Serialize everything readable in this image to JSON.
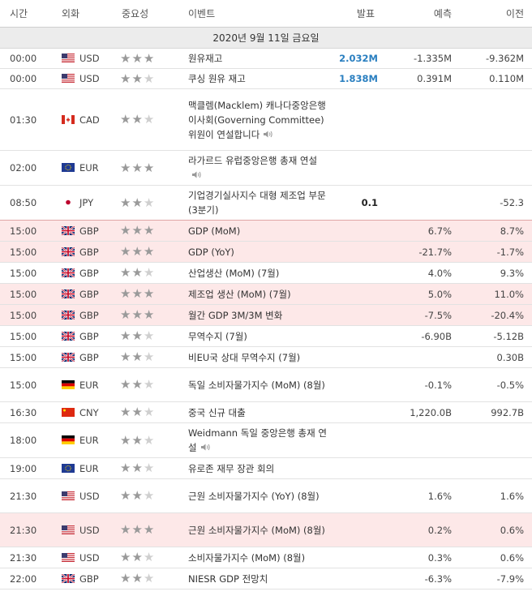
{
  "header": {
    "time": "시간",
    "currency": "외화",
    "importance": "중요성",
    "event": "이벤트",
    "actual": "발표",
    "forecast": "예측",
    "previous": "이전"
  },
  "date_label": "2020년 9월 11일 금요일",
  "colors": {
    "actual_blue": "#2a7fc0",
    "highlight_row": "#fde8e8",
    "star_on": "#9a9a9a",
    "star_off": "#cfcfcf"
  },
  "rows": [
    {
      "time": "00:00",
      "flag": "us-flag-icon",
      "currency": "USD",
      "stars": 3,
      "event": "원유재고",
      "speaker": false,
      "actual": "2.032M",
      "actual_style": "blue",
      "forecast": "-1.335M",
      "previous": "-9.362M",
      "hl": false
    },
    {
      "time": "00:00",
      "flag": "us-flag-icon",
      "currency": "USD",
      "stars": 2,
      "event": "쿠싱 원유 재고",
      "speaker": false,
      "actual": "1.838M",
      "actual_style": "blue",
      "forecast": "0.391M",
      "previous": "0.110M",
      "hl": false
    },
    {
      "time": "01:30",
      "flag": "ca-flag-icon",
      "currency": "CAD",
      "stars": 2,
      "event": "맥클렘(Macklem) 캐나다중앙은행 이사회(Governing Committee) 위원이 연설합니다",
      "speaker": true,
      "actual": "",
      "actual_style": "",
      "forecast": "",
      "previous": "",
      "hl": false
    },
    {
      "time": "02:00",
      "flag": "eu-flag-icon",
      "currency": "EUR",
      "stars": 3,
      "event": "라가르드 유럽중앙은행 총재 연설",
      "speaker": true,
      "actual": "",
      "actual_style": "",
      "forecast": "",
      "previous": "",
      "hl": false
    },
    {
      "time": "08:50",
      "flag": "jp-flag-icon",
      "currency": "JPY",
      "stars": 2,
      "event": "기업경기실사지수 대형 제조업 부문 (3분기)",
      "speaker": false,
      "actual": "0.1",
      "actual_style": "bold",
      "forecast": "",
      "previous": "-52.3",
      "hl": false,
      "sep": true
    },
    {
      "time": "15:00",
      "flag": "gb-flag-icon",
      "currency": "GBP",
      "stars": 3,
      "event": "GDP (MoM)",
      "speaker": false,
      "actual": "",
      "actual_style": "",
      "forecast": "6.7%",
      "previous": "8.7%",
      "hl": true
    },
    {
      "time": "15:00",
      "flag": "gb-flag-icon",
      "currency": "GBP",
      "stars": 3,
      "event": "GDP (YoY)",
      "speaker": false,
      "actual": "",
      "actual_style": "",
      "forecast": "-21.7%",
      "previous": "-1.7%",
      "hl": true
    },
    {
      "time": "15:00",
      "flag": "gb-flag-icon",
      "currency": "GBP",
      "stars": 2,
      "event": "산업생산 (MoM) (7월)",
      "speaker": false,
      "actual": "",
      "actual_style": "",
      "forecast": "4.0%",
      "previous": "9.3%",
      "hl": false
    },
    {
      "time": "15:00",
      "flag": "gb-flag-icon",
      "currency": "GBP",
      "stars": 3,
      "event": "제조업 생산 (MoM) (7월)",
      "speaker": false,
      "actual": "",
      "actual_style": "",
      "forecast": "5.0%",
      "previous": "11.0%",
      "hl": true
    },
    {
      "time": "15:00",
      "flag": "gb-flag-icon",
      "currency": "GBP",
      "stars": 3,
      "event": "월간 GDP 3M/3M 변화",
      "speaker": false,
      "actual": "",
      "actual_style": "",
      "forecast": "-7.5%",
      "previous": "-20.4%",
      "hl": true
    },
    {
      "time": "15:00",
      "flag": "gb-flag-icon",
      "currency": "GBP",
      "stars": 2,
      "event": "무역수지 (7월)",
      "speaker": false,
      "actual": "",
      "actual_style": "",
      "forecast": "-6.90B",
      "previous": "-5.12B",
      "hl": false
    },
    {
      "time": "15:00",
      "flag": "gb-flag-icon",
      "currency": "GBP",
      "stars": 2,
      "event": "비EU국 상대 무역수지 (7월)",
      "speaker": false,
      "actual": "",
      "actual_style": "",
      "forecast": "",
      "previous": "0.30B",
      "hl": false
    },
    {
      "time": "15:00",
      "flag": "de-flag-icon",
      "currency": "EUR",
      "stars": 2,
      "event": "독일 소비자물가지수 (MoM) (8월)",
      "speaker": false,
      "actual": "",
      "actual_style": "",
      "forecast": "-0.1%",
      "previous": "-0.5%",
      "hl": false
    },
    {
      "time": "16:30",
      "flag": "cn-flag-icon",
      "currency": "CNY",
      "stars": 2,
      "event": "중국 신규 대출",
      "speaker": false,
      "actual": "",
      "actual_style": "",
      "forecast": "1,220.0B",
      "previous": "992.7B",
      "hl": false
    },
    {
      "time": "18:00",
      "flag": "de-flag-icon",
      "currency": "EUR",
      "stars": 2,
      "event": "Weidmann 독일 중앙은행 총재 연설",
      "speaker": true,
      "actual": "",
      "actual_style": "",
      "forecast": "",
      "previous": "",
      "hl": false
    },
    {
      "time": "19:00",
      "flag": "eu-flag-icon",
      "currency": "EUR",
      "stars": 2,
      "event": "유로존 재무 장관 회의",
      "speaker": false,
      "actual": "",
      "actual_style": "",
      "forecast": "",
      "previous": "",
      "hl": false
    },
    {
      "time": "21:30",
      "flag": "us-flag-icon",
      "currency": "USD",
      "stars": 2,
      "event": "근원 소비자물가지수 (YoY) (8월)",
      "speaker": false,
      "actual": "",
      "actual_style": "",
      "forecast": "1.6%",
      "previous": "1.6%",
      "hl": false
    },
    {
      "time": "21:30",
      "flag": "us-flag-icon",
      "currency": "USD",
      "stars": 3,
      "event": "근원 소비자물가지수 (MoM) (8월)",
      "speaker": false,
      "actual": "",
      "actual_style": "",
      "forecast": "0.2%",
      "previous": "0.6%",
      "hl": true
    },
    {
      "time": "21:30",
      "flag": "us-flag-icon",
      "currency": "USD",
      "stars": 2,
      "event": "소비자물가지수 (MoM) (8월)",
      "speaker": false,
      "actual": "",
      "actual_style": "",
      "forecast": "0.3%",
      "previous": "0.6%",
      "hl": false
    },
    {
      "time": "22:00",
      "flag": "gb-flag-icon",
      "currency": "GBP",
      "stars": 2,
      "event": "NIESR GDP 전망치",
      "speaker": false,
      "actual": "",
      "actual_style": "",
      "forecast": "-6.3%",
      "previous": "-7.9%",
      "hl": false
    }
  ]
}
